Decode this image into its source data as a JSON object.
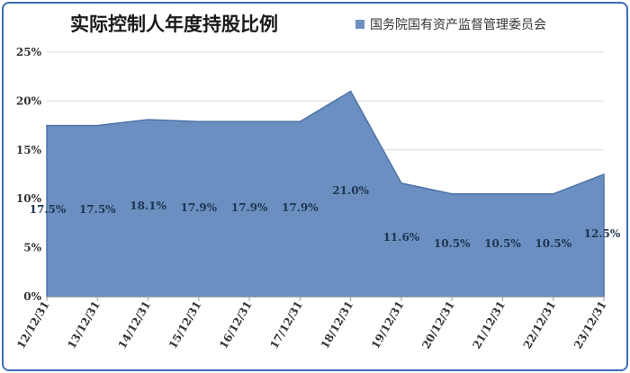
{
  "chart_data": {
    "type": "area",
    "title": "实际控制人年度持股比例",
    "categories": [
      "12/12/31",
      "13/12/31",
      "14/12/31",
      "15/12/31",
      "16/12/31",
      "17/12/31",
      "18/12/31",
      "19/12/31",
      "20/12/31",
      "21/12/31",
      "22/12/31",
      "23/12/31"
    ],
    "series": [
      {
        "name": "国务院国有资产监督管理委员会",
        "values": [
          17.5,
          17.5,
          18.1,
          17.9,
          17.9,
          17.9,
          21.0,
          11.6,
          10.5,
          10.5,
          10.5,
          12.5
        ],
        "labels": [
          "17.5%",
          "17.5%",
          "18.1%",
          "17.9%",
          "17.9%",
          "17.9%",
          "21.0%",
          "11.6%",
          "10.5%",
          "10.5%",
          "10.5%",
          "12.5%"
        ]
      }
    ],
    "ylim": [
      0,
      25
    ],
    "yticks": [
      "0%",
      "5%",
      "10%",
      "15%",
      "20%",
      "25%"
    ],
    "grid": true,
    "legend_position": "top-right",
    "colors": {
      "area": "#6a8fc0",
      "area_stroke": "#4f74a8",
      "frame": "#3a6fb5",
      "grid": "#d9d9d9"
    }
  }
}
